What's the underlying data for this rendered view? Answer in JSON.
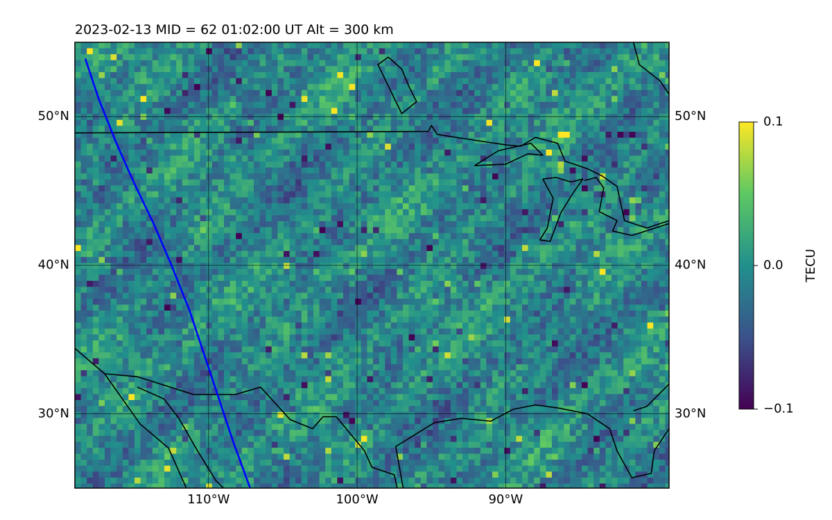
{
  "title": "2023-02-13  MID =  62    01:02:00  UT  Alt = 300 km",
  "map": {
    "lon_range": [
      -119,
      -79
    ],
    "lat_range": [
      25,
      55
    ],
    "gridlines": true,
    "lat_ticks": [
      {
        "value": 50,
        "label": "50°N"
      },
      {
        "value": 40,
        "label": "40°N"
      },
      {
        "value": 30,
        "label": "30°N"
      }
    ],
    "lon_ticks": [
      {
        "value": -110,
        "label": "110°W"
      },
      {
        "value": -100,
        "label": "100°W"
      },
      {
        "value": -90,
        "label": "90°W"
      }
    ],
    "terminator_color": "#0000ff",
    "terminator_lonlat": [
      [
        -118.3,
        53.9
      ],
      [
        -117.4,
        51.2
      ],
      [
        -116.2,
        48.2
      ],
      [
        -115.0,
        45.5
      ],
      [
        -113.7,
        42.8
      ],
      [
        -112.5,
        40.0
      ],
      [
        -111.3,
        37.0
      ],
      [
        -110.3,
        34.0
      ],
      [
        -109.3,
        31.0
      ],
      [
        -108.3,
        28.0
      ],
      [
        -107.2,
        25.0
      ]
    ],
    "coastlines": [
      [
        [
          -119,
          48.9
        ],
        [
          -95.2,
          49.0
        ],
        [
          -95.0,
          49.4
        ],
        [
          -94.6,
          48.8
        ],
        [
          -92.0,
          48.4
        ],
        [
          -90.0,
          48.1
        ],
        [
          -89.0,
          48.0
        ],
        [
          -88.0,
          48.6
        ],
        [
          -86.5,
          48.2
        ],
        [
          -86.0,
          47.0
        ],
        [
          -84.5,
          46.5
        ],
        [
          -83.5,
          46.0
        ],
        [
          -82.5,
          45.3
        ],
        [
          -82.0,
          43.0
        ],
        [
          -80.5,
          42.5
        ],
        [
          -79,
          43.0
        ]
      ],
      [
        [
          -92.1,
          46.7
        ],
        [
          -90.0,
          46.8
        ],
        [
          -88.5,
          47.5
        ],
        [
          -87.5,
          47.4
        ],
        [
          -88.3,
          48.2
        ],
        [
          -89.2,
          48.0
        ],
        [
          -90.5,
          47.7
        ],
        [
          -92.1,
          46.7
        ]
      ],
      [
        [
          -87.5,
          45.8
        ],
        [
          -86.8,
          44.5
        ],
        [
          -87.2,
          42.5
        ],
        [
          -87.7,
          41.7
        ],
        [
          -87.0,
          41.6
        ],
        [
          -86.3,
          43.5
        ],
        [
          -85.5,
          44.8
        ],
        [
          -84.8,
          45.8
        ],
        [
          -85.6,
          45.6
        ],
        [
          -86.6,
          45.9
        ],
        [
          -87.5,
          45.8
        ]
      ],
      [
        [
          -84.7,
          45.7
        ],
        [
          -83.9,
          45.9
        ],
        [
          -83.4,
          45.2
        ],
        [
          -83.7,
          43.6
        ],
        [
          -82.5,
          43.0
        ],
        [
          -82.8,
          42.3
        ],
        [
          -81.5,
          42.0
        ],
        [
          -79,
          42.8
        ]
      ],
      [
        [
          -97.9,
          54.0
        ],
        [
          -97.0,
          53.2
        ],
        [
          -96.5,
          52.0
        ],
        [
          -96.0,
          51.0
        ],
        [
          -97.0,
          50.2
        ],
        [
          -98.6,
          53.5
        ],
        [
          -97.9,
          54.0
        ]
      ],
      [
        [
          -81.4,
          55.0
        ],
        [
          -81.0,
          53.5
        ],
        [
          -79.6,
          52.4
        ],
        [
          -79,
          51.5
        ]
      ],
      [
        [
          -119,
          34.4
        ],
        [
          -117.0,
          32.7
        ],
        [
          -114.8,
          32.5
        ],
        [
          -111.0,
          31.3
        ],
        [
          -108.2,
          31.3
        ],
        [
          -106.5,
          31.8
        ],
        [
          -104.5,
          29.6
        ],
        [
          -103.0,
          29.0
        ],
        [
          -102.3,
          29.8
        ],
        [
          -101.4,
          29.8
        ],
        [
          -99.5,
          27.5
        ],
        [
          -99.0,
          26.4
        ],
        [
          -97.5,
          25.9
        ],
        [
          -97.3,
          25.0
        ]
      ],
      [
        [
          -117.0,
          32.7
        ],
        [
          -114.6,
          29.3
        ],
        [
          -112.7,
          27.7
        ],
        [
          -111.5,
          25.0
        ]
      ],
      [
        [
          -114.8,
          31.8
        ],
        [
          -113.0,
          31.0
        ],
        [
          -112.0,
          29.7
        ],
        [
          -110.8,
          27.6
        ],
        [
          -109.5,
          25.5
        ],
        [
          -109.0,
          25.0
        ]
      ],
      [
        [
          -96.9,
          25.0
        ],
        [
          -97.4,
          27.8
        ],
        [
          -94.8,
          29.4
        ],
        [
          -93.0,
          29.7
        ],
        [
          -91.0,
          29.5
        ],
        [
          -89.5,
          30.3
        ],
        [
          -88.0,
          30.6
        ],
        [
          -86.5,
          30.4
        ],
        [
          -84.5,
          30.0
        ],
        [
          -83.0,
          29.0
        ],
        [
          -82.5,
          27.5
        ],
        [
          -81.5,
          25.7
        ],
        [
          -80.2,
          26.0
        ],
        [
          -80.0,
          27.5
        ],
        [
          -79,
          29.0
        ]
      ],
      [
        [
          -79,
          32.0
        ],
        [
          -80.5,
          30.5
        ],
        [
          -81.4,
          30.2
        ]
      ]
    ]
  },
  "colorbar": {
    "label": "TECU",
    "ticks": [
      {
        "value": 0.1,
        "label": "0.1"
      },
      {
        "value": 0.0,
        "label": "0.0"
      },
      {
        "value": -0.1,
        "label": "−0.1"
      }
    ],
    "range": [
      -0.1,
      0.1
    ],
    "colormap": [
      "#440154",
      "#3b528b",
      "#21908c",
      "#5dc863",
      "#fde725"
    ]
  }
}
